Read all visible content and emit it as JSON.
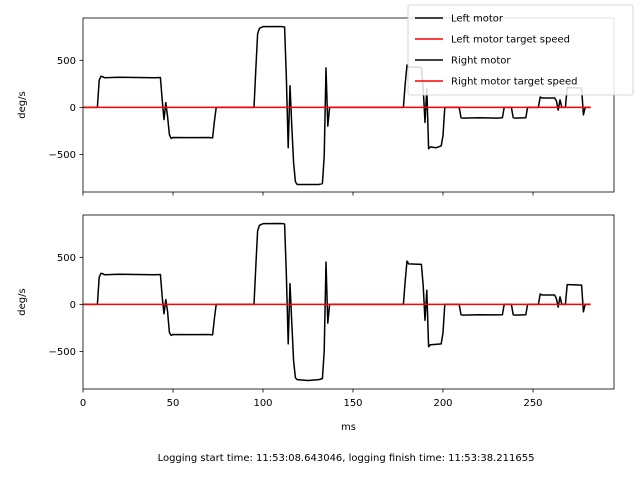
{
  "caption": "Logging start time: 11:53:08.643046, logging finish time: 11:53:38.211655",
  "chart_data": [
    {
      "type": "line",
      "xlabel": "",
      "ylabel": "deg/s",
      "xlim": [
        0,
        295
      ],
      "ylim": [
        -900,
        950
      ],
      "xticks": [
        0,
        50,
        100,
        150,
        200,
        250
      ],
      "xtick_labels": [],
      "yticks": [
        -500,
        0,
        500
      ],
      "ytick_labels": [
        "−500",
        "0",
        "500"
      ],
      "grid": false,
      "legend_position": "top-right",
      "series": [
        {
          "name": "Left motor",
          "color": "#000000",
          "points": [
            [
              0,
              0
            ],
            [
              8,
              0
            ],
            [
              9,
              290
            ],
            [
              10,
              330
            ],
            [
              11,
              325
            ],
            [
              12,
              315
            ],
            [
              20,
              320
            ],
            [
              30,
              318
            ],
            [
              40,
              315
            ],
            [
              43,
              318
            ],
            [
              44,
              80
            ],
            [
              45,
              -130
            ],
            [
              46,
              50
            ],
            [
              47,
              -100
            ],
            [
              48,
              -290
            ],
            [
              49,
              -330
            ],
            [
              50,
              -320
            ],
            [
              60,
              -322
            ],
            [
              70,
              -320
            ],
            [
              72,
              -325
            ],
            [
              73,
              -150
            ],
            [
              74,
              0
            ],
            [
              95,
              0
            ],
            [
              96,
              400
            ],
            [
              97,
              780
            ],
            [
              98,
              840
            ],
            [
              100,
              858
            ],
            [
              110,
              860
            ],
            [
              112,
              855
            ],
            [
              113,
              300
            ],
            [
              114,
              -430
            ],
            [
              115,
              230
            ],
            [
              116,
              -200
            ],
            [
              117,
              -590
            ],
            [
              118,
              -790
            ],
            [
              119,
              -820
            ],
            [
              125,
              -820
            ],
            [
              131,
              -820
            ],
            [
              133,
              -810
            ],
            [
              134,
              -520
            ],
            [
              135,
              420
            ],
            [
              136,
              -200
            ],
            [
              137,
              0
            ],
            [
              178,
              0
            ],
            [
              179,
              250
            ],
            [
              180,
              450
            ],
            [
              181,
              430
            ],
            [
              188,
              425
            ],
            [
              189,
              200
            ],
            [
              190,
              -160
            ],
            [
              191,
              200
            ],
            [
              192,
              -440
            ],
            [
              193,
              -420
            ],
            [
              196,
              -430
            ],
            [
              199,
              -410
            ],
            [
              200,
              -300
            ],
            [
              201,
              0
            ],
            [
              209,
              0
            ],
            [
              210,
              -110
            ],
            [
              211,
              -115
            ],
            [
              220,
              -110
            ],
            [
              230,
              -115
            ],
            [
              233,
              -110
            ],
            [
              234,
              0
            ],
            [
              238,
              0
            ],
            [
              239,
              -110
            ],
            [
              240,
              -115
            ],
            [
              246,
              -110
            ],
            [
              247,
              0
            ],
            [
              253,
              0
            ],
            [
              254,
              110
            ],
            [
              255,
              100
            ],
            [
              262,
              100
            ],
            [
              263,
              70
            ],
            [
              264,
              -30
            ],
            [
              265,
              80
            ],
            [
              266,
              0
            ],
            [
              268,
              0
            ],
            [
              269,
              210
            ],
            [
              270,
              210
            ],
            [
              277,
              205
            ],
            [
              278,
              -80
            ],
            [
              279,
              0
            ],
            [
              282,
              0
            ]
          ]
        },
        {
          "name": "Left motor target speed",
          "color": "#ff0000",
          "points": [
            [
              0,
              0
            ],
            [
              282,
              0
            ]
          ]
        },
        {
          "name": "Right motor",
          "color": "#000000",
          "points": []
        },
        {
          "name": "Right motor target speed",
          "color": "#ff0000",
          "points": []
        }
      ]
    },
    {
      "type": "line",
      "xlabel": "ms",
      "ylabel": "deg/s",
      "xlim": [
        0,
        295
      ],
      "ylim": [
        -900,
        950
      ],
      "xticks": [
        0,
        50,
        100,
        150,
        200,
        250
      ],
      "xtick_labels": [
        "0",
        "50",
        "100",
        "150",
        "200",
        "250"
      ],
      "yticks": [
        -500,
        0,
        500
      ],
      "ytick_labels": [
        "−500",
        "0",
        "500"
      ],
      "grid": false,
      "series": [
        {
          "color": "#000000",
          "points": [
            [
              0,
              0
            ],
            [
              8,
              0
            ],
            [
              9,
              290
            ],
            [
              10,
              330
            ],
            [
              11,
              325
            ],
            [
              12,
              315
            ],
            [
              20,
              320
            ],
            [
              30,
              318
            ],
            [
              40,
              315
            ],
            [
              43,
              318
            ],
            [
              44,
              80
            ],
            [
              45,
              -100
            ],
            [
              46,
              50
            ],
            [
              47,
              -80
            ],
            [
              48,
              -300
            ],
            [
              49,
              -330
            ],
            [
              50,
              -320
            ],
            [
              60,
              -322
            ],
            [
              70,
              -320
            ],
            [
              72,
              -325
            ],
            [
              73,
              -150
            ],
            [
              74,
              0
            ],
            [
              95,
              0
            ],
            [
              96,
              400
            ],
            [
              97,
              780
            ],
            [
              98,
              840
            ],
            [
              100,
              858
            ],
            [
              110,
              860
            ],
            [
              112,
              855
            ],
            [
              113,
              300
            ],
            [
              114,
              -420
            ],
            [
              115,
              220
            ],
            [
              116,
              -200
            ],
            [
              117,
              -600
            ],
            [
              118,
              -780
            ],
            [
              119,
              -800
            ],
            [
              125,
              -810
            ],
            [
              131,
              -800
            ],
            [
              133,
              -790
            ],
            [
              134,
              -500
            ],
            [
              135,
              450
            ],
            [
              136,
              -200
            ],
            [
              137,
              0
            ],
            [
              178,
              0
            ],
            [
              179,
              250
            ],
            [
              180,
              460
            ],
            [
              181,
              430
            ],
            [
              188,
              425
            ],
            [
              189,
              200
            ],
            [
              190,
              -170
            ],
            [
              191,
              150
            ],
            [
              192,
              -450
            ],
            [
              193,
              -430
            ],
            [
              196,
              -425
            ],
            [
              199,
              -420
            ],
            [
              200,
              -300
            ],
            [
              201,
              0
            ],
            [
              209,
              0
            ],
            [
              210,
              -110
            ],
            [
              211,
              -115
            ],
            [
              220,
              -110
            ],
            [
              230,
              -112
            ],
            [
              233,
              -110
            ],
            [
              234,
              0
            ],
            [
              238,
              0
            ],
            [
              239,
              -110
            ],
            [
              240,
              -115
            ],
            [
              246,
              -110
            ],
            [
              247,
              0
            ],
            [
              253,
              0
            ],
            [
              254,
              110
            ],
            [
              255,
              100
            ],
            [
              262,
              100
            ],
            [
              263,
              60
            ],
            [
              264,
              -30
            ],
            [
              265,
              80
            ],
            [
              266,
              0
            ],
            [
              268,
              0
            ],
            [
              269,
              210
            ],
            [
              270,
              210
            ],
            [
              277,
              205
            ],
            [
              278,
              -80
            ],
            [
              279,
              0
            ],
            [
              282,
              0
            ]
          ]
        },
        {
          "color": "#ff0000",
          "points": [
            [
              0,
              0
            ],
            [
              282,
              0
            ]
          ]
        }
      ]
    }
  ]
}
